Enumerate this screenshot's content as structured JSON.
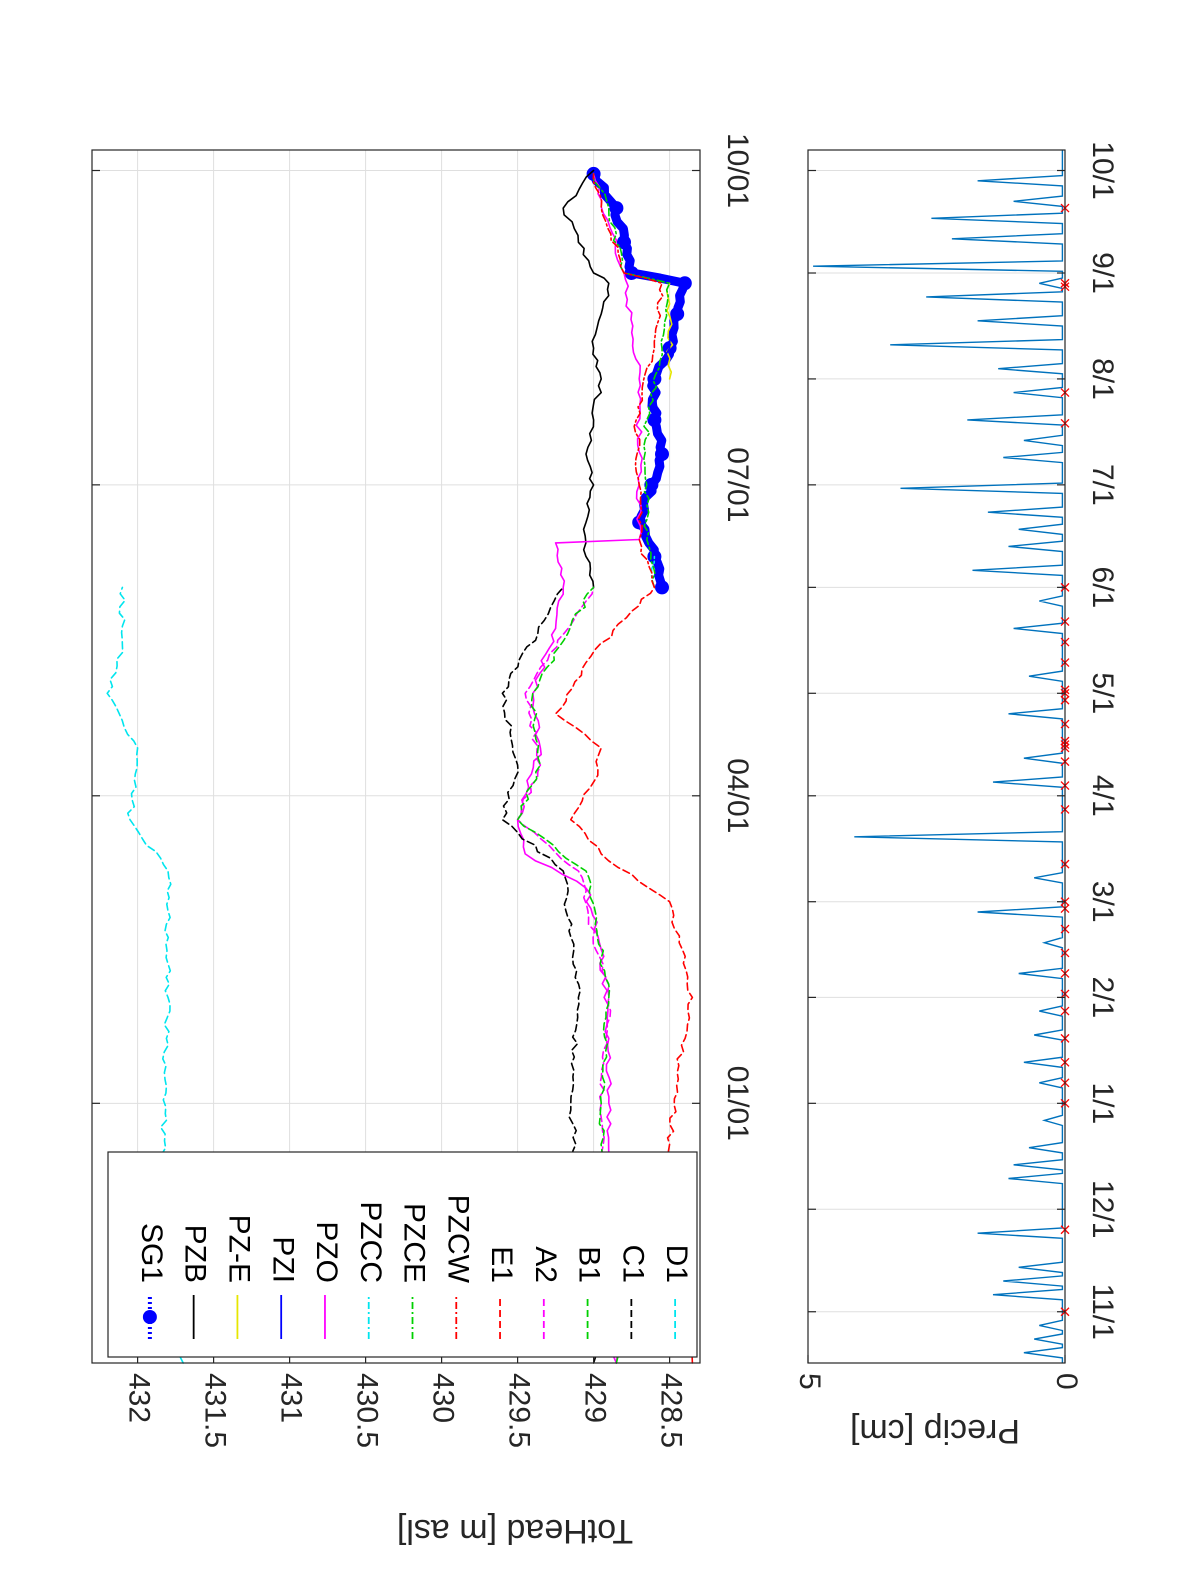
{
  "chart_data": [
    {
      "type": "line",
      "orientation": "rotated 90 degrees clockwise",
      "ylabel": "TotHead [m asl]",
      "ylim": [
        428.3,
        432.3
      ],
      "yticks": [
        "428.5",
        "429",
        "429.5",
        "430",
        "430.5",
        "431",
        "431.5",
        "432"
      ],
      "xlim": [
        "2018-10-17",
        "2019-10-07"
      ],
      "xticks": [
        {
          "date": "2019-01-01",
          "label": "01/01"
        },
        {
          "date": "2019-04-01",
          "label": "04/01"
        },
        {
          "date": "2019-07-01",
          "label": "07/01"
        },
        {
          "date": "2019-10-01",
          "label": "10/01"
        }
      ],
      "grid": true,
      "legend_position": "inside, left end of the time axis",
      "series": [
        {
          "name": "SG1",
          "color": "#0000ff",
          "style": "dotted with filled circles",
          "x": [
            "2019-06-01",
            "2019-06-10",
            "2019-06-20",
            "2019-07-01",
            "2019-07-10",
            "2019-07-20",
            "2019-08-01",
            "2019-08-10",
            "2019-08-20",
            "2019-08-29",
            "2019-09-01",
            "2019-09-10",
            "2019-09-20",
            "2019-09-30"
          ],
          "values": [
            428.55,
            428.6,
            428.7,
            428.62,
            428.55,
            428.6,
            428.6,
            428.5,
            428.45,
            428.4,
            428.75,
            428.8,
            428.85,
            429.0
          ]
        },
        {
          "name": "PZB",
          "color": "#000000",
          "style": "solid",
          "x": [
            "2019-06-01",
            "2019-06-10",
            "2019-06-20",
            "2019-07-01",
            "2019-07-10",
            "2019-07-20",
            "2019-08-01",
            "2019-08-10",
            "2019-08-20",
            "2019-08-29",
            "2019-09-01",
            "2019-09-10",
            "2019-09-20",
            "2019-10-01"
          ],
          "values": [
            429.0,
            429.05,
            429.05,
            429.0,
            429.05,
            429.0,
            428.95,
            429.0,
            428.95,
            428.9,
            429.0,
            429.1,
            429.2,
            429.0
          ]
        },
        {
          "name": "PZ-E",
          "color": "#e6e600",
          "style": "solid",
          "x": [
            "2019-08-01",
            "2019-08-29"
          ],
          "values": [
            428.5,
            428.5
          ]
        },
        {
          "name": "PZI",
          "color": "#0000ff",
          "style": "solid",
          "x": [
            "2019-06-01",
            "2019-06-10",
            "2019-06-20",
            "2019-07-01",
            "2019-07-10",
            "2019-07-20",
            "2019-08-01",
            "2019-08-10",
            "2019-08-20",
            "2019-08-29",
            "2019-09-01",
            "2019-09-10",
            "2019-09-20",
            "2019-09-30"
          ],
          "values": [
            428.55,
            428.6,
            428.7,
            428.62,
            428.55,
            428.6,
            428.6,
            428.5,
            428.45,
            428.4,
            428.75,
            428.8,
            428.85,
            429.0
          ]
        },
        {
          "name": "PZO",
          "color": "#ff00ff",
          "style": "solid",
          "x": [
            "2018-10-17",
            "2019-01-01",
            "2019-01-20",
            "2019-02-15",
            "2019-03-05",
            "2019-03-15",
            "2019-03-25",
            "2019-04-15",
            "2019-05-01",
            "2019-05-20",
            "2019-06-01",
            "2019-06-14",
            "2019-06-15",
            "2019-07-01",
            "2019-08-01",
            "2019-09-01",
            "2019-09-30"
          ],
          "values": [
            428.85,
            428.9,
            428.9,
            428.95,
            429.05,
            429.45,
            429.5,
            429.35,
            429.4,
            429.25,
            429.2,
            429.25,
            428.7,
            428.7,
            428.7,
            428.8,
            429.0
          ]
        },
        {
          "name": "PZCC",
          "color": "#00e5ee",
          "style": "dash-dot",
          "x": [
            "2019-06-01",
            "2019-06-10"
          ],
          "values": [
            428.6,
            428.6
          ]
        },
        {
          "name": "PZCE",
          "color": "#00d000",
          "style": "dash-dot",
          "x": [
            "2019-06-01",
            "2019-06-15",
            "2019-07-01",
            "2019-07-20",
            "2019-08-10",
            "2019-08-29",
            "2019-09-01",
            "2019-09-20",
            "2019-09-30"
          ],
          "values": [
            428.6,
            428.65,
            428.65,
            428.65,
            428.55,
            428.5,
            428.8,
            428.9,
            429.0
          ]
        },
        {
          "name": "PZCW",
          "color": "#ff0000",
          "style": "dash-dot",
          "x": [
            "2019-06-01",
            "2019-06-15",
            "2019-07-01",
            "2019-07-20",
            "2019-08-10",
            "2019-08-29",
            "2019-09-01",
            "2019-09-20",
            "2019-09-30"
          ],
          "values": [
            428.6,
            428.7,
            428.7,
            428.72,
            428.6,
            428.55,
            428.8,
            428.95,
            429.0
          ]
        },
        {
          "name": "E1",
          "color": "#ff0000",
          "style": "dashed",
          "x": [
            "2018-10-17",
            "2018-12-20",
            "2019-01-10",
            "2019-02-01",
            "2019-03-01",
            "2019-03-15",
            "2019-03-25",
            "2019-04-05",
            "2019-04-15",
            "2019-04-25",
            "2019-05-10",
            "2019-05-25",
            "2019-06-01"
          ],
          "values": [
            428.35,
            428.5,
            428.45,
            428.35,
            428.5,
            428.95,
            429.15,
            429.0,
            428.95,
            429.25,
            429.05,
            428.75,
            428.6
          ]
        },
        {
          "name": "A2",
          "color": "#ff00ff",
          "style": "dashed",
          "x": [
            "2018-10-17",
            "2019-01-01",
            "2019-02-01",
            "2019-03-10",
            "2019-03-25",
            "2019-04-10",
            "2019-05-01",
            "2019-06-01"
          ],
          "values": [
            428.85,
            428.95,
            428.9,
            429.1,
            429.5,
            429.35,
            429.45,
            429.0
          ]
        },
        {
          "name": "B1",
          "color": "#00d000",
          "style": "dashed",
          "x": [
            "2018-10-17",
            "2019-01-01",
            "2019-02-01",
            "2019-03-10",
            "2019-03-25",
            "2019-04-10",
            "2019-05-01",
            "2019-06-01"
          ],
          "values": [
            428.85,
            428.95,
            428.9,
            429.05,
            429.5,
            429.35,
            429.4,
            429.0
          ]
        },
        {
          "name": "C1",
          "color": "#000000",
          "style": "dashed",
          "x": [
            "2018-10-17",
            "2019-01-01",
            "2019-02-01",
            "2019-03-10",
            "2019-03-25",
            "2019-04-10",
            "2019-05-01",
            "2019-06-01"
          ],
          "values": [
            429.0,
            429.15,
            429.1,
            429.2,
            429.6,
            429.5,
            429.6,
            429.2
          ]
        },
        {
          "name": "D1",
          "color": "#00e5ee",
          "style": "dashed",
          "x": [
            "2018-10-17",
            "2018-12-01",
            "2019-02-01",
            "2019-03-10",
            "2019-03-25",
            "2019-04-15",
            "2019-05-01",
            "2019-05-15",
            "2019-06-01"
          ],
          "values": [
            431.7,
            431.85,
            431.8,
            431.8,
            432.05,
            432.0,
            432.2,
            432.1,
            432.1
          ]
        }
      ]
    },
    {
      "type": "line",
      "orientation": "rotated 90 degrees clockwise",
      "ylabel": "Precip [cm]",
      "ylim": [
        0,
        5
      ],
      "yticks": [
        "0",
        "5"
      ],
      "xlim": [
        "2018-10-17",
        "2019-10-07"
      ],
      "xticks": [
        {
          "date": "2018-11-01",
          "label": "11/1"
        },
        {
          "date": "2018-12-01",
          "label": "12/1"
        },
        {
          "date": "2019-01-01",
          "label": "1/1"
        },
        {
          "date": "2019-02-01",
          "label": "2/1"
        },
        {
          "date": "2019-03-01",
          "label": "3/1"
        },
        {
          "date": "2019-04-01",
          "label": "4/1"
        },
        {
          "date": "2019-05-01",
          "label": "5/1"
        },
        {
          "date": "2019-06-01",
          "label": "6/1"
        },
        {
          "date": "2019-07-01",
          "label": "7/1"
        },
        {
          "date": "2019-08-01",
          "label": "8/1"
        },
        {
          "date": "2019-09-01",
          "label": "9/1"
        },
        {
          "date": "2019-10-01",
          "label": "10/1"
        }
      ],
      "grid": true,
      "series": [
        {
          "color": "#0072bd",
          "style": "solid",
          "x": [
            "2018-10-20",
            "2018-10-24",
            "2018-10-28",
            "2018-11-06",
            "2018-11-10",
            "2018-11-14",
            "2018-11-24",
            "2018-12-10",
            "2018-12-14",
            "2018-12-19",
            "2018-12-27",
            "2019-01-07",
            "2019-01-13",
            "2019-01-21",
            "2019-01-28",
            "2019-02-08",
            "2019-02-17",
            "2019-02-26",
            "2019-03-08",
            "2019-03-20",
            "2019-04-05",
            "2019-04-12",
            "2019-04-25",
            "2019-05-06",
            "2019-05-20",
            "2019-05-28",
            "2019-06-06",
            "2019-06-13",
            "2019-06-18",
            "2019-06-23",
            "2019-06-30",
            "2019-07-09",
            "2019-07-14",
            "2019-07-20",
            "2019-07-28",
            "2019-08-04",
            "2019-08-11",
            "2019-08-18",
            "2019-08-25",
            "2019-08-29",
            "2019-09-03",
            "2019-09-11",
            "2019-09-17",
            "2019-09-22",
            "2019-09-28"
          ],
          "values": [
            0.8,
            0.6,
            0.5,
            1.4,
            1.2,
            0.9,
            1.7,
            1.1,
            1.0,
            0.7,
            0.4,
            0.5,
            0.8,
            0.6,
            0.5,
            0.9,
            0.4,
            1.7,
            0.6,
            4.1,
            1.4,
            0.8,
            1.1,
            0.7,
            1.0,
            0.5,
            1.8,
            1.1,
            0.9,
            1.5,
            3.2,
            1.2,
            0.8,
            1.9,
            1.0,
            1.3,
            3.4,
            1.7,
            2.7,
            0.5,
            4.9,
            2.2,
            2.6,
            1.0,
            1.7
          ]
        }
      ],
      "markers": {
        "color": "#ff0000",
        "symbol": "x",
        "x": [
          "2018-11-01",
          "2018-11-25",
          "2019-01-01",
          "2019-01-07",
          "2019-01-13",
          "2019-01-20",
          "2019-01-28",
          "2019-02-02",
          "2019-02-08",
          "2019-02-14",
          "2019-02-21",
          "2019-02-27",
          "2019-03-01",
          "2019-03-12",
          "2019-03-28",
          "2019-04-04",
          "2019-04-11",
          "2019-04-15",
          "2019-04-16",
          "2019-04-17",
          "2019-04-22",
          "2019-04-29",
          "2019-05-01",
          "2019-05-02",
          "2019-05-10",
          "2019-05-16",
          "2019-05-22",
          "2019-06-01",
          "2019-07-19",
          "2019-07-28",
          "2019-08-28",
          "2019-08-29",
          "2019-09-20"
        ]
      }
    }
  ]
}
